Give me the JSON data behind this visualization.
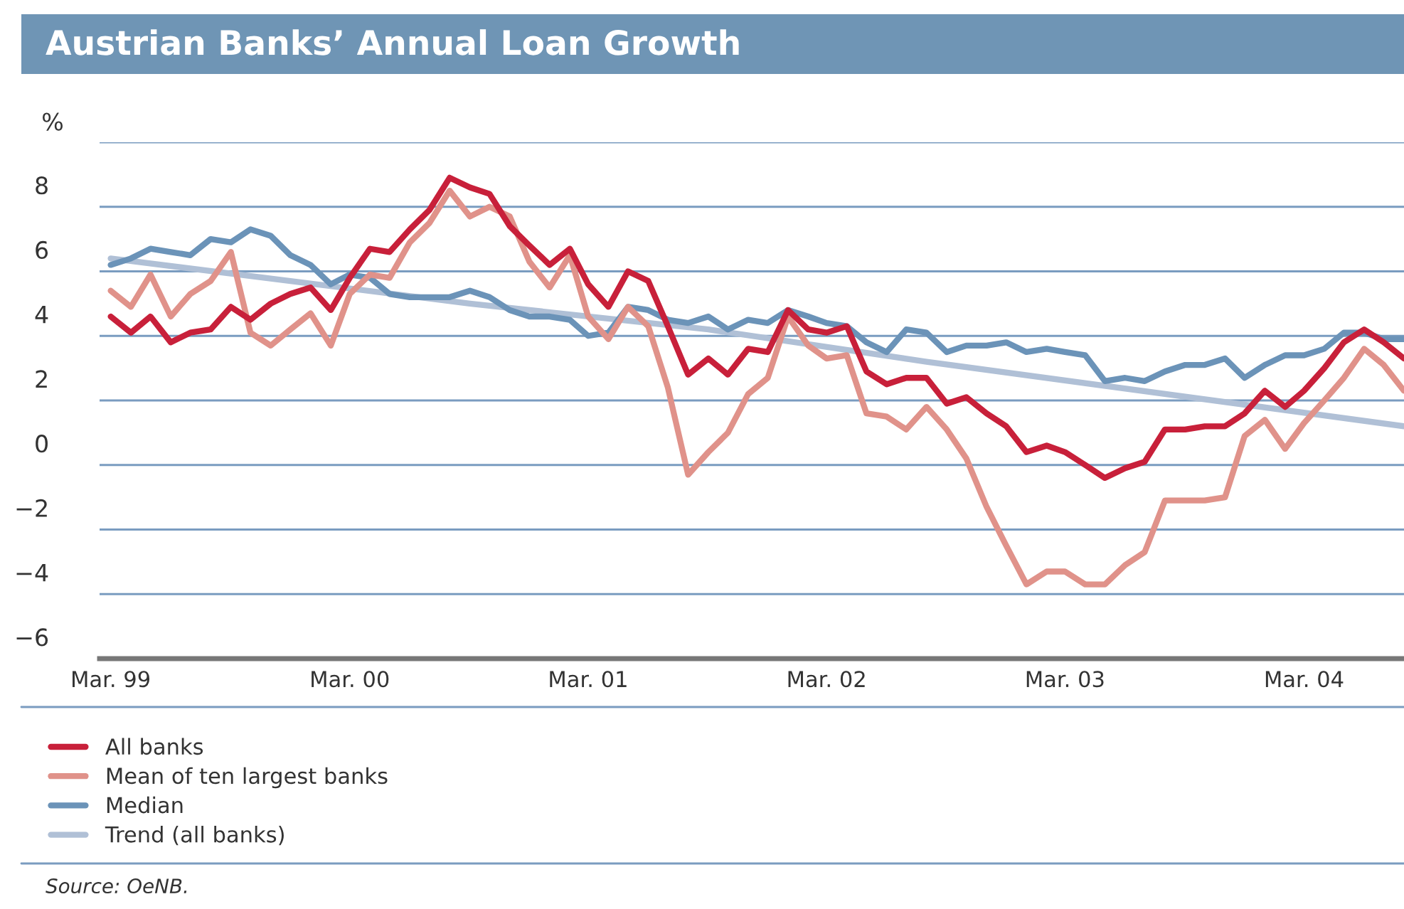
{
  "chart_data": {
    "type": "line",
    "title": "Austrian Banks’ Annual Loan Growth",
    "ylabel": "%",
    "x": [
      "1999-03",
      "1999-04",
      "1999-05",
      "1999-06",
      "1999-07",
      "1999-08",
      "1999-09",
      "1999-10",
      "1999-11",
      "1999-12",
      "2000-01",
      "2000-02",
      "2000-03",
      "2000-04",
      "2000-05",
      "2000-06",
      "2000-07",
      "2000-08",
      "2000-09",
      "2000-10",
      "2000-11",
      "2000-12",
      "2001-01",
      "2001-02",
      "2001-03",
      "2001-04",
      "2001-05",
      "2001-06",
      "2001-07",
      "2001-08",
      "2001-09",
      "2001-10",
      "2001-11",
      "2001-12",
      "2002-01",
      "2002-02",
      "2002-03",
      "2002-04",
      "2002-05",
      "2002-06",
      "2002-07",
      "2002-08",
      "2002-09",
      "2002-10",
      "2002-11",
      "2002-12",
      "2003-01",
      "2003-02",
      "2003-03",
      "2003-04",
      "2003-05",
      "2003-06",
      "2003-07",
      "2003-08",
      "2003-09",
      "2003-10",
      "2003-11",
      "2003-12",
      "2004-01",
      "2004-02",
      "2004-03",
      "2004-04",
      "2004-05",
      "2004-06",
      "2004-07",
      "2004-08"
    ],
    "series": [
      {
        "name": "All banks",
        "color": "#c8203a",
        "values": [
          4.6,
          4.1,
          4.6,
          3.8,
          4.1,
          4.2,
          4.9,
          4.5,
          5.0,
          5.3,
          5.5,
          4.8,
          5.8,
          6.7,
          6.6,
          7.3,
          7.9,
          8.9,
          8.6,
          8.4,
          7.4,
          6.8,
          6.2,
          6.7,
          5.6,
          4.9,
          6.0,
          5.7,
          4.3,
          2.8,
          3.3,
          2.8,
          3.6,
          3.5,
          4.8,
          4.2,
          4.1,
          4.3,
          2.9,
          2.5,
          2.7,
          2.7,
          1.9,
          2.1,
          1.6,
          1.2,
          0.4,
          0.6,
          0.4,
          0.0,
          -0.4,
          -0.1,
          0.1,
          1.1,
          1.1,
          1.2,
          1.2,
          1.6,
          2.3,
          1.8,
          2.3,
          3.0,
          3.8,
          4.2,
          3.8,
          3.3
        ]
      },
      {
        "name": "Mean of ten largest banks",
        "color": "#e0928a",
        "values": [
          5.4,
          4.9,
          5.9,
          4.6,
          5.3,
          5.7,
          6.6,
          4.1,
          3.7,
          4.2,
          4.7,
          3.7,
          5.3,
          5.9,
          5.8,
          6.9,
          7.5,
          8.5,
          7.7,
          8.0,
          7.7,
          6.3,
          5.5,
          6.5,
          4.6,
          3.9,
          4.9,
          4.3,
          2.4,
          -0.3,
          0.4,
          1.0,
          2.2,
          2.7,
          4.6,
          3.7,
          3.3,
          3.4,
          1.6,
          1.5,
          1.1,
          1.8,
          1.1,
          0.2,
          -1.3,
          -2.5,
          -3.7,
          -3.3,
          -3.3,
          -3.7,
          -3.7,
          -3.1,
          -2.7,
          -1.1,
          -1.1,
          -1.1,
          -1.0,
          0.9,
          1.4,
          0.5,
          1.3,
          2.0,
          2.7,
          3.6,
          3.1,
          2.3
        ]
      },
      {
        "name": "Median",
        "color": "#6b93b8",
        "values": [
          6.2,
          6.4,
          6.7,
          6.6,
          6.5,
          7.0,
          6.9,
          7.3,
          7.1,
          6.5,
          6.2,
          5.6,
          5.9,
          5.8,
          5.3,
          5.2,
          5.2,
          5.2,
          5.4,
          5.2,
          4.8,
          4.6,
          4.6,
          4.5,
          4.0,
          4.1,
          4.9,
          4.8,
          4.5,
          4.4,
          4.6,
          4.2,
          4.5,
          4.4,
          4.8,
          4.6,
          4.4,
          4.3,
          3.8,
          3.5,
          4.2,
          4.1,
          3.5,
          3.7,
          3.7,
          3.8,
          3.5,
          3.6,
          3.5,
          3.4,
          2.6,
          2.7,
          2.6,
          2.9,
          3.1,
          3.1,
          3.3,
          2.7,
          3.1,
          3.4,
          3.4,
          3.6,
          4.1,
          4.1,
          3.9,
          3.9
        ]
      },
      {
        "name": "Trend (all banks)",
        "color": "#b0c0d6",
        "x": [
          "1999-03",
          "2000-09",
          "2001-09",
          "2002-08",
          "2004-08"
        ],
        "values": [
          6.4,
          5.0,
          4.2,
          3.2,
          1.2
        ]
      }
    ],
    "xlim": [
      "1999-02-12",
      "2004-08-01"
    ],
    "xticks": [
      {
        "value": "1999-03",
        "label": "Mar. 99"
      },
      {
        "value": "2000-03",
        "label": "Mar. 00"
      },
      {
        "value": "2001-03",
        "label": "Mar. 01"
      },
      {
        "value": "2002-03",
        "label": "Mar. 02"
      },
      {
        "value": "2003-03",
        "label": "Mar. 03"
      },
      {
        "value": "2004-03",
        "label": "Mar. 04"
      }
    ],
    "ylim": [
      -6,
      10
    ],
    "yticks": [
      -6,
      -4,
      -2,
      0,
      2,
      4,
      6,
      8,
      {
        "value": 10,
        "label": null
      }
    ],
    "grid": "y",
    "legend": "bottom",
    "line_style": "solid",
    "marker": "none",
    "annotations": [
      "Source: OeNB."
    ]
  }
}
